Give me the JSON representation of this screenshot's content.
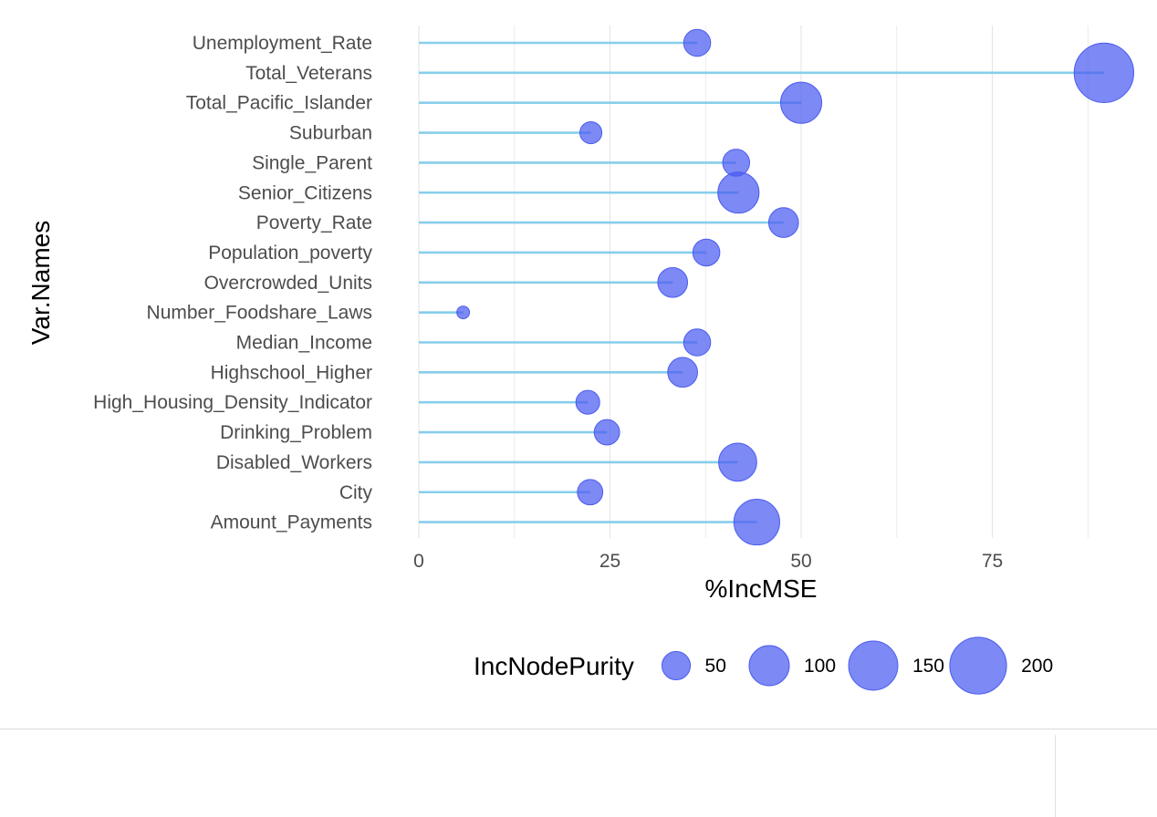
{
  "chart_data": {
    "type": "scatter",
    "subtype": "lollipop",
    "title": "",
    "xlabel": "%IncMSE",
    "ylabel": "Var.Names",
    "xlim": [
      0,
      92
    ],
    "x_ticks": [
      0,
      25,
      50,
      75
    ],
    "grid": true,
    "categories": [
      "Unemployment_Rate",
      "Total_Veterans",
      "Total_Pacific_Islander",
      "Suburban",
      "Single_Parent",
      "Senior_Citizens",
      "Poverty_Rate",
      "Population_poverty",
      "Overcrowded_Units",
      "Number_Foodshare_Laws",
      "Median_Income",
      "Highschool_Higher",
      "High_Housing_Density_Indicator",
      "Drinking_Problem",
      "Disabled_Workers",
      "City",
      "Amount_Payments"
    ],
    "values": [
      36.4,
      89.6,
      50.0,
      22.5,
      41.5,
      41.8,
      47.7,
      37.6,
      33.2,
      5.8,
      36.4,
      34.5,
      22.1,
      24.6,
      41.7,
      22.4,
      44.2
    ],
    "size_values": [
      45,
      220,
      105,
      30,
      45,
      105,
      55,
      45,
      55,
      10,
      45,
      55,
      35,
      40,
      90,
      40,
      130
    ],
    "size_label": "IncNodePurity",
    "legend": {
      "title": "IncNodePurity",
      "position": "bottom",
      "entries": [
        {
          "label": "50",
          "value": 50
        },
        {
          "label": "100",
          "value": 100
        },
        {
          "label": "150",
          "value": 150
        },
        {
          "label": "200",
          "value": 200
        }
      ]
    },
    "colors": {
      "segment": "#87ceeb",
      "point": "#4b5cf0",
      "grid": "#e6e6e6"
    }
  }
}
